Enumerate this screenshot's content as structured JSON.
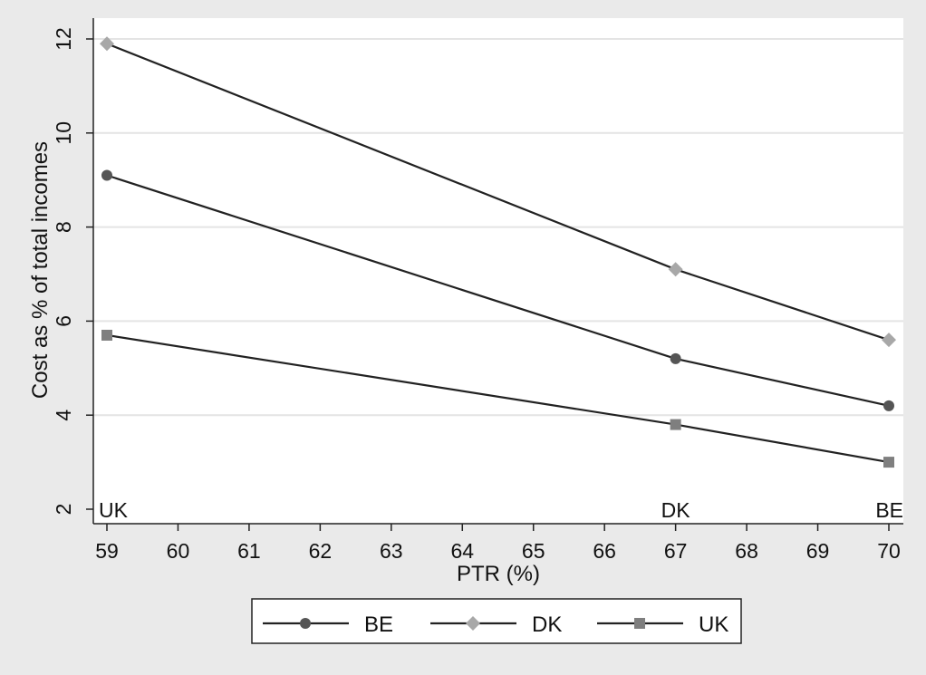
{
  "chart_data": {
    "type": "line",
    "title": "",
    "xlabel": "PTR (%)",
    "ylabel": "Cost as % of total incomes",
    "xlim": [
      59,
      70
    ],
    "ylim": [
      2,
      12
    ],
    "x_ticks": [
      59,
      60,
      61,
      62,
      63,
      64,
      65,
      66,
      67,
      68,
      69,
      70
    ],
    "y_ticks": [
      2,
      4,
      6,
      8,
      10,
      12
    ],
    "grid": "horizontal",
    "legend_position": "bottom",
    "point_labels": [
      {
        "x": 59,
        "text": "UK"
      },
      {
        "x": 67,
        "text": "DK"
      },
      {
        "x": 70,
        "text": "BE"
      }
    ],
    "series": [
      {
        "name": "BE",
        "marker": "circle",
        "color": "#555555",
        "points": [
          {
            "x": 59,
            "y": 9.1
          },
          {
            "x": 67,
            "y": 5.2
          },
          {
            "x": 70,
            "y": 4.2
          }
        ]
      },
      {
        "name": "DK",
        "marker": "diamond",
        "color": "#a8a8a8",
        "points": [
          {
            "x": 59,
            "y": 11.9
          },
          {
            "x": 67,
            "y": 7.1
          },
          {
            "x": 70,
            "y": 5.6
          }
        ]
      },
      {
        "name": "UK",
        "marker": "square",
        "color": "#7f7f7f",
        "points": [
          {
            "x": 59,
            "y": 5.7
          },
          {
            "x": 67,
            "y": 3.8
          },
          {
            "x": 70,
            "y": 3.0
          }
        ]
      }
    ]
  }
}
